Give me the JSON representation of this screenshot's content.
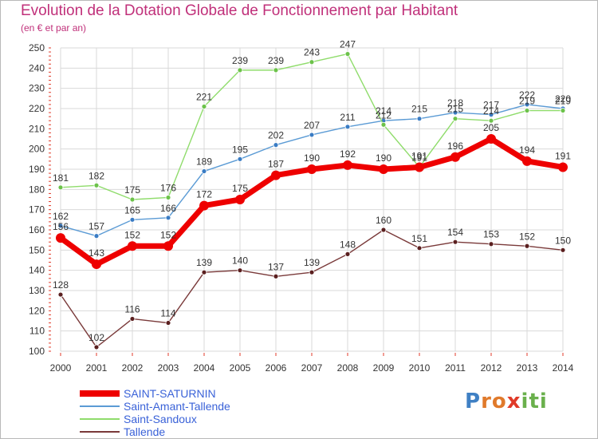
{
  "title": "Evolution de la Dotation Globale de Fonctionnement par Habitant",
  "subtitle": "(en € et par an)",
  "logo": {
    "text": "Proxiti",
    "letters": [
      "P",
      "r",
      "o",
      "x",
      "i",
      "t",
      "i"
    ],
    "colors": [
      "#3f80c4",
      "#e07a2b",
      "#e07a2b",
      "#e03a28",
      "#6ab04c",
      "#6ab04c",
      "#6ab04c"
    ]
  },
  "colors": {
    "title": "#c0307a",
    "axis_text": "#333333",
    "grid_major": "#d9d9d9",
    "axis_tick": "#e03a28",
    "legend_text": "#3a62d8"
  },
  "chart_data": {
    "type": "line",
    "title": "Evolution de la Dotation Globale de Fonctionnement par Habitant",
    "subtitle": "(en € et par an)",
    "x": [
      "2000",
      "2001",
      "2002",
      "2003",
      "2004",
      "2005",
      "2006",
      "2007",
      "2008",
      "2009",
      "2010",
      "2011",
      "2012",
      "2013",
      "2014"
    ],
    "yticks": [
      100,
      110,
      120,
      130,
      140,
      150,
      160,
      170,
      180,
      190,
      200,
      210,
      220,
      230,
      240,
      250
    ],
    "ylim": [
      100,
      250
    ],
    "grid": true,
    "legend_position": "bottom-left",
    "series": [
      {
        "name": "Saint-Amant-Tallende",
        "color": "#5b9bd5",
        "marker": "#3a7cc4",
        "width": 1.4,
        "r": 3,
        "label": "above",
        "values": [
          162,
          157,
          165,
          166,
          189,
          195,
          202,
          207,
          211,
          214,
          215,
          218,
          217,
          222,
          220
        ]
      },
      {
        "name": "Saint-Sandoux",
        "color": "#8fdc6b",
        "marker": "#6cc24a",
        "width": 1.4,
        "r": 3,
        "label": "above",
        "values": [
          181,
          182,
          175,
          176,
          221,
          239,
          239,
          243,
          247,
          212,
          191,
          215,
          214,
          219,
          219
        ]
      },
      {
        "name": "Tallende",
        "color": "#7a3a3a",
        "marker": "#5a1f1f",
        "width": 1.4,
        "r": 3,
        "label": "above",
        "values": [
          128,
          102,
          116,
          114,
          139,
          140,
          137,
          139,
          148,
          160,
          151,
          154,
          153,
          152,
          150
        ]
      },
      {
        "name": "SAINT-SATURNIN",
        "color": "#ee0000",
        "marker": "#ee0000",
        "width": 7,
        "r": 6,
        "label": "above",
        "values": [
          156,
          143,
          152,
          152,
          172,
          175,
          187,
          190,
          192,
          190,
          191,
          196,
          205,
          194,
          191
        ]
      }
    ],
    "legend": [
      "SAINT-SATURNIN",
      "Saint-Amant-Tallende",
      "Saint-Sandoux",
      "Tallende"
    ]
  }
}
